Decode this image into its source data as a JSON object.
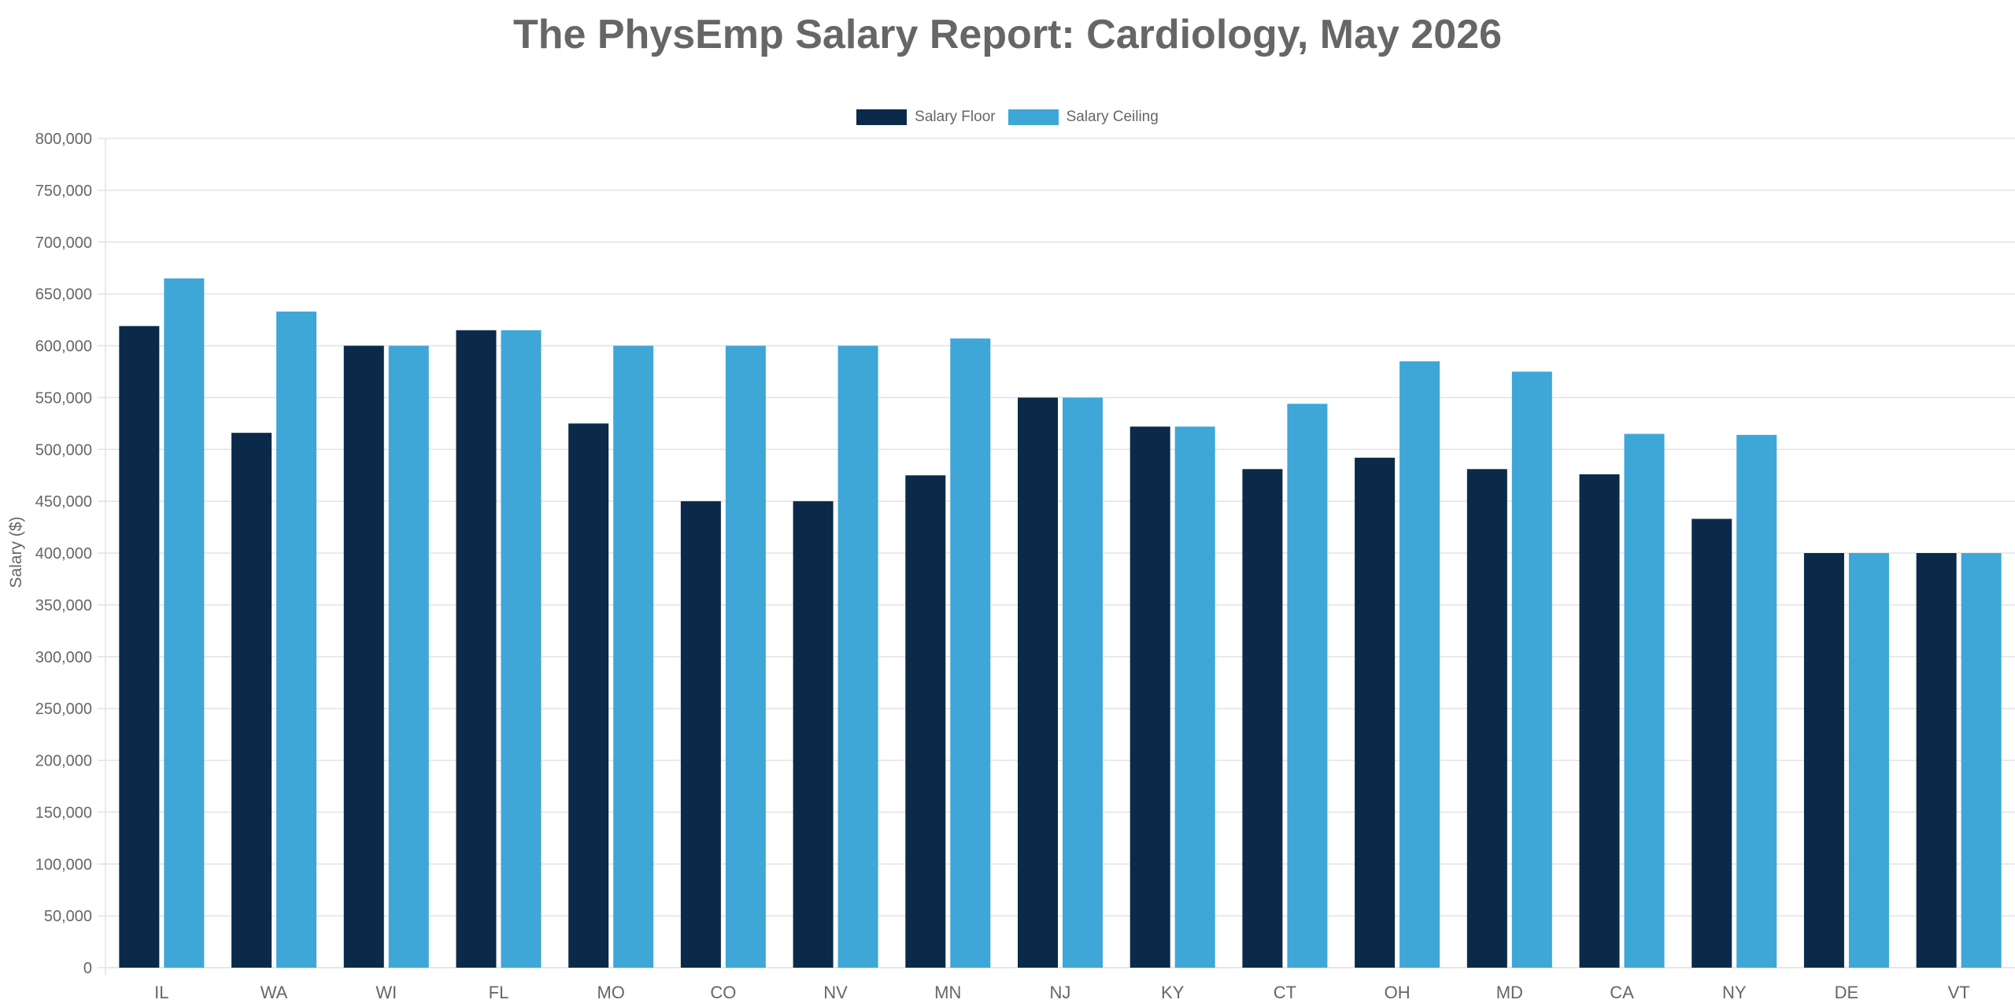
{
  "chart_data": {
    "type": "bar",
    "title": "The PhysEmp Salary Report: Cardiology, May 2026",
    "xlabel": "",
    "ylabel": "Salary ($)",
    "ylim": [
      0,
      800000
    ],
    "ytick_step": 50000,
    "grid": true,
    "legend_position": "top-center",
    "categories": [
      "IL",
      "WA",
      "WI",
      "FL",
      "MO",
      "CO",
      "NV",
      "MN",
      "NJ",
      "KY",
      "CT",
      "OH",
      "MD",
      "CA",
      "NY",
      "DE",
      "VT"
    ],
    "series": [
      {
        "name": "Salary Floor",
        "color": "#0b2a4a",
        "values": [
          619000,
          516000,
          600000,
          615000,
          525000,
          450000,
          450000,
          475000,
          550000,
          522000,
          481000,
          492000,
          481000,
          476000,
          433000,
          400000,
          400000
        ]
      },
      {
        "name": "Salary Ceiling",
        "color": "#3fa6d8",
        "values": [
          665000,
          633000,
          600000,
          615000,
          600000,
          600000,
          600000,
          607000,
          550000,
          522000,
          544000,
          585000,
          575000,
          515000,
          514000,
          400000,
          400000
        ]
      }
    ]
  }
}
